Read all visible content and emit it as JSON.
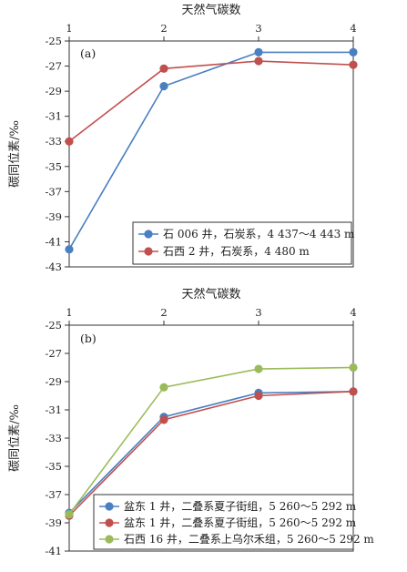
{
  "chart_data": [
    {
      "type": "line",
      "panel_label": "(a)",
      "xlabel": "天然气碳数",
      "ylabel": "碳同位素/‰",
      "x": [
        1,
        2,
        3,
        4
      ],
      "xticks": [
        "1",
        "2",
        "3",
        "4"
      ],
      "xaxis_position": "top",
      "ylim": [
        -43,
        -25
      ],
      "yticks": [
        "-25",
        "-27",
        "-29",
        "-31",
        "-33",
        "-35",
        "-37",
        "-39",
        "-41",
        "-43"
      ],
      "grid": false,
      "legend_position": "bottom-right",
      "series": [
        {
          "name": "石 006 井，石炭系，4 437～4 443 m",
          "color": "#4a7fc1",
          "values": [
            -41.6,
            -28.6,
            -25.9,
            -25.9
          ]
        },
        {
          "name": "石西 2 井，石炭系，4 480 m",
          "color": "#c0504d",
          "values": [
            -33.0,
            -27.2,
            -26.6,
            -26.9
          ]
        }
      ]
    },
    {
      "type": "line",
      "panel_label": "(b)",
      "xlabel": "天然气碳数",
      "ylabel": "碳同位素/‰",
      "x": [
        1,
        2,
        3,
        4
      ],
      "xticks": [
        "1",
        "2",
        "3",
        "4"
      ],
      "xaxis_position": "top",
      "ylim": [
        -41,
        -25
      ],
      "yticks": [
        "-25",
        "-27",
        "-29",
        "-31",
        "-33",
        "-35",
        "-37",
        "-39",
        "-41"
      ],
      "grid": false,
      "legend_position": "bottom-right",
      "series": [
        {
          "name": "盆东 1 井，二叠系夏子街组，5 260～5 292 m",
          "color": "#4a7fc1",
          "values": [
            -38.3,
            -31.5,
            -29.8,
            -29.7
          ]
        },
        {
          "name": "盆东 1 井，二叠系夏子街组，5 260～5 292 m",
          "color": "#c0504d",
          "values": [
            -38.5,
            -31.7,
            -30.0,
            -29.7
          ]
        },
        {
          "name": "石西 16 井，二叠系上乌尔禾组，5 260～5 292 m",
          "color": "#9bbb59",
          "values": [
            -38.4,
            -29.4,
            -28.1,
            -28.0
          ]
        }
      ]
    }
  ]
}
